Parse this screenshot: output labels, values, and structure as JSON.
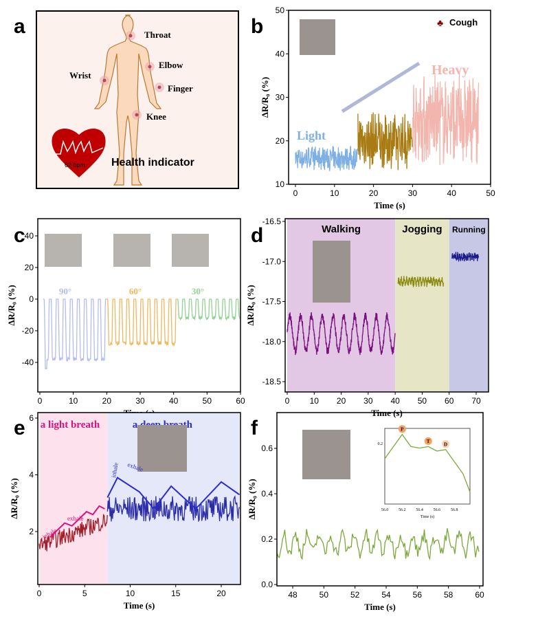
{
  "panel_labels": [
    "a",
    "b",
    "c",
    "d",
    "e",
    "f"
  ],
  "panel_a": {
    "sites": [
      "Throat",
      "Elbow",
      "Wrist",
      "Finger",
      "Knee"
    ],
    "heart_rate": "62 bpm",
    "caption": "Health indicator",
    "colors": {
      "background": "#fdf1ee",
      "body": "#fbd9bd",
      "outline": "#b9782e",
      "heart": "#c00000"
    }
  },
  "chart_data": [
    {
      "panel": "b",
      "type": "line",
      "xlabel": "Time (s)",
      "ylabel": "ΔR/R₀ (%)",
      "xlim": [
        0,
        50
      ],
      "ylim": [
        10,
        50
      ],
      "xticks": [
        0,
        10,
        20,
        30,
        40,
        50
      ],
      "yticks": [
        10,
        20,
        30,
        40,
        50
      ],
      "legend": {
        "label": "Cough",
        "icon": "club-icon",
        "color": "#8b0000",
        "placement": "top-right"
      },
      "annotations": [
        "Light",
        "Heavy"
      ],
      "series": [
        {
          "name": "Light",
          "t": [
            0,
            16
          ],
          "baseline": 16,
          "amplitude": 3,
          "period": 0.5,
          "color": "#7fb0e4"
        },
        {
          "t": [
            16,
            30
          ],
          "baseline": 20,
          "amplitude": 7,
          "period": 0.6,
          "color": "#a87c12"
        },
        {
          "name": "Heavy",
          "t": [
            30,
            47
          ],
          "baseline": 25,
          "amplitude": 11,
          "period": 0.7,
          "color": "#f3b6ae"
        }
      ]
    },
    {
      "panel": "c",
      "type": "line",
      "xlabel": "Time (s)",
      "ylabel": "ΔR/R₀ (%)",
      "xlim": [
        0,
        60
      ],
      "ylim": [
        -55,
        50
      ],
      "xticks": [
        0,
        10,
        20,
        30,
        40,
        50,
        60
      ],
      "yticks": [
        -40,
        -20,
        0,
        20,
        40
      ],
      "series": [
        {
          "name": "90°",
          "t": [
            1,
            20
          ],
          "peak": -38,
          "first_peak": -44,
          "period": 2.1,
          "color": "#b3bcf2"
        },
        {
          "name": "60°",
          "t": [
            20,
            41
          ],
          "peak": -28,
          "first_peak": -29,
          "period": 2.1,
          "color": "#f2b65c"
        },
        {
          "name": "30°",
          "t": [
            41,
            60
          ],
          "peak": -12,
          "first_peak": -12,
          "period": 2.0,
          "color": "#8fd48f"
        }
      ]
    },
    {
      "panel": "d",
      "type": "line",
      "xlabel": "Time (s)",
      "ylabel": "ΔR/R₀ (%)",
      "xlim": [
        0,
        75
      ],
      "ylim": [
        -18.5,
        -16.5
      ],
      "xticks": [
        0,
        10,
        20,
        30,
        40,
        50,
        60,
        70
      ],
      "yticks": [
        -18.5,
        -18.0,
        -17.5,
        -17.0,
        -16.5
      ],
      "regions": [
        {
          "name": "Walking",
          "t": [
            0,
            40
          ],
          "color": "#e3c8e6"
        },
        {
          "name": "Jogging",
          "t": [
            40,
            60
          ],
          "color": "#e6e6c6"
        },
        {
          "name": "Running",
          "t": [
            60,
            75
          ],
          "color": "#c6c8e6"
        }
      ],
      "series": [
        {
          "t": [
            0,
            40
          ],
          "baseline": -17.9,
          "amplitude": 0.22,
          "period": 4,
          "noise": 0.05,
          "color": "#7a0e7e"
        },
        {
          "t": [
            41,
            58
          ],
          "baseline": -17.25,
          "amplitude": 0.03,
          "period": 1,
          "noise": 0.04,
          "color": "#8a8a10"
        },
        {
          "t": [
            61,
            71
          ],
          "baseline": -16.94,
          "amplitude": 0.02,
          "period": 0.7,
          "noise": 0.04,
          "color": "#1a1a8a"
        }
      ]
    },
    {
      "panel": "e",
      "type": "line",
      "xlabel": "Time (s)",
      "ylabel": "ΔR/R₀ (%)",
      "xlim": [
        0,
        22
      ],
      "ylim": [
        1,
        6
      ],
      "xticks": [
        0,
        5,
        10,
        15,
        20
      ],
      "yticks": [
        2,
        4,
        6
      ],
      "regions": [
        {
          "name": "a light breath",
          "t": [
            0,
            7.5
          ],
          "color": "#fde2ee",
          "label_color": "#e0107a"
        },
        {
          "name": "a deep breath",
          "t": [
            7.5,
            22
          ],
          "color": "#e4e8f8",
          "label_color": "#2b2bd8"
        }
      ],
      "annotations": [
        "inhale",
        "exhale"
      ],
      "series": [
        {
          "t": [
            0,
            7.5
          ],
          "baseline_start": 1.5,
          "baseline_end": 2.4,
          "noise": 0.3,
          "color": "#a0202a"
        },
        {
          "t": [
            7.5,
            22
          ],
          "baseline": 2.8,
          "noise": 0.45,
          "color": "#2c2ca8"
        },
        {
          "t": [
            1.2,
            7.2
          ],
          "envelope": [
            [
              1.2,
              1.8
            ],
            [
              2.8,
              2.3
            ],
            [
              3.6,
              2.2
            ],
            [
              5.2,
              2.7
            ],
            [
              5.9,
              2.6
            ],
            [
              6.6,
              2.9
            ],
            [
              7.2,
              2.8
            ]
          ],
          "color": "#e0107a"
        },
        {
          "t": [
            7.5,
            22
          ],
          "envelope": [
            [
              7.5,
              3.2
            ],
            [
              8.6,
              3.9
            ],
            [
              11,
              3.4
            ],
            [
              12.6,
              2.8
            ],
            [
              14.5,
              3.6
            ],
            [
              17.2,
              2.8
            ],
            [
              20,
              3.75
            ],
            [
              22,
              3.3
            ]
          ],
          "color": "#2b2bd8"
        }
      ]
    },
    {
      "panel": "f",
      "type": "line",
      "xlabel": "Time (s)",
      "ylabel": "ΔR/R₀ (%)",
      "xlim": [
        47,
        60
      ],
      "ylim": [
        0,
        0.68
      ],
      "xticks": [
        48,
        50,
        52,
        54,
        56,
        58,
        60
      ],
      "yticks": [
        0.0,
        0.2,
        0.4,
        0.6
      ],
      "series": [
        {
          "t": [
            47,
            60
          ],
          "baseline": 0.18,
          "amplitude": 0.04,
          "period": 0.75,
          "noise": 0.03,
          "color": "#7aa83a"
        }
      ],
      "inset": {
        "xlabel": "Time (s)",
        "xticks": [
          56.0,
          56.2,
          56.4,
          56.6,
          56.8
        ],
        "yticks": [
          0.2
        ],
        "xlim": [
          56.0,
          56.98
        ],
        "ylim": [
          0.0,
          0.25
        ],
        "x": [
          56.0,
          56.1,
          56.2,
          56.3,
          56.4,
          56.5,
          56.6,
          56.7,
          56.8,
          56.9,
          56.98
        ],
        "y": [
          0.15,
          0.19,
          0.23,
          0.19,
          0.185,
          0.19,
          0.175,
          0.18,
          0.14,
          0.1,
          0.04
        ],
        "markers": [
          {
            "label": "P",
            "x": 56.2
          },
          {
            "label": "T",
            "x": 56.5
          },
          {
            "label": "D",
            "x": 56.7
          }
        ],
        "marker_color": "#f5a05a"
      }
    }
  ]
}
